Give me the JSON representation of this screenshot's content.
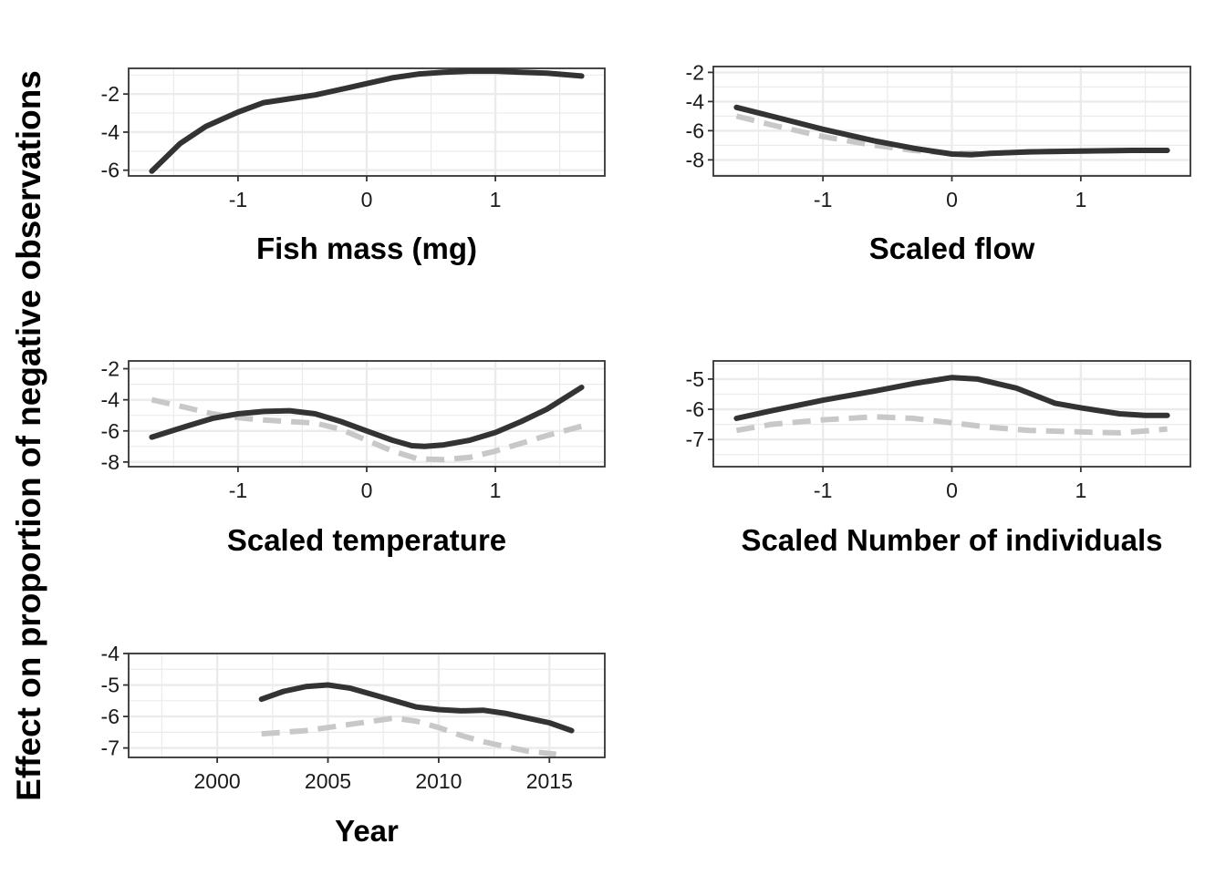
{
  "ylabel": "Effect on proportion of negative observations",
  "colors": {
    "solid": "#333333",
    "dashed": "#c8c8c8",
    "grid": "#ebebeb",
    "frame": "#333333"
  },
  "chart_data": [
    {
      "type": "line",
      "xlabel": "Fish mass (mg)",
      "xlim": [
        -1.85,
        1.85
      ],
      "ylim": [
        -6.3,
        -0.65
      ],
      "xticks": [
        -1,
        0,
        1
      ],
      "xtick_labels": [
        "-1",
        "0",
        "1"
      ],
      "yticks": [
        -2,
        -4,
        -6
      ],
      "ytick_labels": [
        "-2",
        "-4",
        "-6"
      ],
      "series": [
        {
          "style": "solid",
          "x": [
            -1.67,
            -1.45,
            -1.25,
            -1.0,
            -0.8,
            -0.6,
            -0.4,
            -0.2,
            0.0,
            0.2,
            0.4,
            0.6,
            0.8,
            1.0,
            1.2,
            1.4,
            1.67
          ],
          "y": [
            -6.05,
            -4.6,
            -3.7,
            -2.95,
            -2.45,
            -2.25,
            -2.05,
            -1.75,
            -1.45,
            -1.15,
            -0.95,
            -0.85,
            -0.8,
            -0.8,
            -0.85,
            -0.9,
            -1.05
          ]
        }
      ]
    },
    {
      "type": "line",
      "xlabel": "Scaled flow",
      "xlim": [
        -1.85,
        1.85
      ],
      "ylim": [
        -9.1,
        -1.6
      ],
      "xticks": [
        -1,
        0,
        1
      ],
      "xtick_labels": [
        "-1",
        "0",
        "1"
      ],
      "yticks": [
        -2,
        -4,
        -6,
        -8
      ],
      "ytick_labels": [
        "-2",
        "-4",
        "-6",
        "-8"
      ],
      "series": [
        {
          "style": "solid",
          "x": [
            -1.67,
            -1.4,
            -1.0,
            -0.6,
            -0.3,
            0.0,
            0.15,
            0.3,
            0.6,
            1.0,
            1.4,
            1.67
          ],
          "y": [
            -4.4,
            -5.0,
            -5.9,
            -6.7,
            -7.2,
            -7.6,
            -7.65,
            -7.55,
            -7.45,
            -7.4,
            -7.35,
            -7.35
          ]
        },
        {
          "style": "dashed",
          "x": [
            -1.67,
            -1.4,
            -1.0,
            -0.6,
            -0.3,
            0.0,
            0.3,
            0.6,
            1.0,
            1.4,
            1.67
          ],
          "y": [
            -5.0,
            -5.6,
            -6.4,
            -7.0,
            -7.35,
            -7.55,
            -7.55,
            -7.45,
            -7.4,
            -7.35,
            -7.35
          ]
        }
      ]
    },
    {
      "type": "line",
      "xlabel": "Scaled temperature",
      "xlim": [
        -1.85,
        1.85
      ],
      "ylim": [
        -8.3,
        -1.5
      ],
      "xticks": [
        -1,
        0,
        1
      ],
      "xtick_labels": [
        "-1",
        "0",
        "1"
      ],
      "yticks": [
        -2,
        -4,
        -6,
        -8
      ],
      "ytick_labels": [
        "-2",
        "-4",
        "-6",
        "-8"
      ],
      "series": [
        {
          "style": "solid",
          "x": [
            -1.67,
            -1.4,
            -1.2,
            -1.0,
            -0.8,
            -0.6,
            -0.4,
            -0.2,
            0.0,
            0.2,
            0.35,
            0.45,
            0.6,
            0.8,
            1.0,
            1.2,
            1.4,
            1.67
          ],
          "y": [
            -6.4,
            -5.7,
            -5.2,
            -4.9,
            -4.75,
            -4.7,
            -4.9,
            -5.4,
            -6.0,
            -6.6,
            -6.95,
            -7.0,
            -6.9,
            -6.6,
            -6.1,
            -5.4,
            -4.6,
            -3.2
          ]
        },
        {
          "style": "dashed",
          "x": [
            -1.67,
            -1.4,
            -1.2,
            -1.0,
            -0.8,
            -0.6,
            -0.4,
            -0.2,
            0.0,
            0.2,
            0.4,
            0.6,
            0.8,
            1.0,
            1.2,
            1.4,
            1.67
          ],
          "y": [
            -4.0,
            -4.5,
            -4.9,
            -5.15,
            -5.3,
            -5.4,
            -5.5,
            -5.9,
            -6.6,
            -7.3,
            -7.8,
            -7.85,
            -7.7,
            -7.3,
            -6.8,
            -6.3,
            -5.7
          ]
        }
      ]
    },
    {
      "type": "line",
      "xlabel": "Scaled Number of individuals",
      "xlim": [
        -1.85,
        1.85
      ],
      "ylim": [
        -7.9,
        -4.4
      ],
      "xticks": [
        -1,
        0,
        1
      ],
      "xtick_labels": [
        "-1",
        "0",
        "1"
      ],
      "yticks": [
        -5,
        -6,
        -7
      ],
      "ytick_labels": [
        "-5",
        "-6",
        "-7"
      ],
      "series": [
        {
          "style": "solid",
          "x": [
            -1.67,
            -1.4,
            -1.0,
            -0.6,
            -0.3,
            0.0,
            0.2,
            0.5,
            0.8,
            1.0,
            1.3,
            1.5,
            1.67
          ],
          "y": [
            -6.3,
            -6.05,
            -5.7,
            -5.4,
            -5.15,
            -4.95,
            -5.0,
            -5.3,
            -5.8,
            -5.95,
            -6.15,
            -6.2,
            -6.2
          ]
        },
        {
          "style": "dashed",
          "x": [
            -1.67,
            -1.4,
            -1.0,
            -0.6,
            -0.3,
            0.0,
            0.3,
            0.6,
            1.0,
            1.3,
            1.5,
            1.67
          ],
          "y": [
            -6.7,
            -6.5,
            -6.35,
            -6.25,
            -6.3,
            -6.45,
            -6.6,
            -6.7,
            -6.75,
            -6.78,
            -6.72,
            -6.65
          ]
        }
      ]
    },
    {
      "type": "line",
      "xlabel": "Year",
      "xlim": [
        1996,
        2017.5
      ],
      "ylim": [
        -7.3,
        -4.0
      ],
      "xticks": [
        2000,
        2005,
        2010,
        2015
      ],
      "xtick_labels": [
        "2000",
        "2005",
        "2010",
        "2015"
      ],
      "yticks": [
        -4,
        -5,
        -6,
        -7
      ],
      "ytick_labels": [
        "-4",
        "-5",
        "-6",
        "-7"
      ],
      "series": [
        {
          "style": "solid",
          "x": [
            2002,
            2003,
            2004,
            2005,
            2006,
            2007,
            2008,
            2009,
            2010,
            2011,
            2012,
            2013,
            2014,
            2015,
            2016
          ],
          "y": [
            -5.45,
            -5.2,
            -5.05,
            -5.0,
            -5.1,
            -5.3,
            -5.5,
            -5.7,
            -5.78,
            -5.82,
            -5.8,
            -5.9,
            -6.05,
            -6.2,
            -6.45
          ]
        },
        {
          "style": "dashed",
          "x": [
            2002,
            2003,
            2004,
            2005,
            2006,
            2007,
            2008,
            2009,
            2010,
            2011,
            2012,
            2013,
            2014,
            2015.3
          ],
          "y": [
            -6.55,
            -6.5,
            -6.45,
            -6.35,
            -6.25,
            -6.15,
            -6.05,
            -6.15,
            -6.35,
            -6.6,
            -6.8,
            -6.95,
            -7.1,
            -7.2
          ]
        }
      ]
    }
  ]
}
